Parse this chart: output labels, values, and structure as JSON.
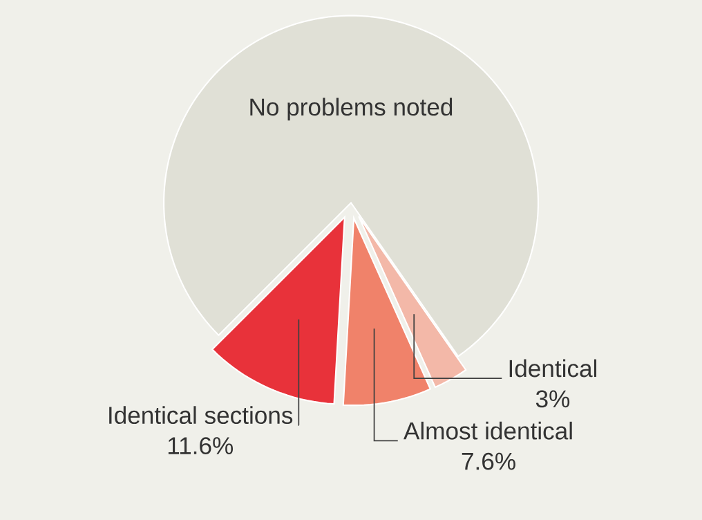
{
  "chart_data": {
    "type": "pie",
    "categories": [
      "No problems noted",
      "Identical sections",
      "Almost identical",
      "Identical"
    ],
    "values": [
      77.8,
      11.6,
      7.6,
      3
    ],
    "colors": [
      "#e0e0d6",
      "#e8323a",
      "#f0826a",
      "#f3b8a8"
    ],
    "value_labels": [
      null,
      "11.6%",
      "7.6%",
      "3%"
    ]
  }
}
